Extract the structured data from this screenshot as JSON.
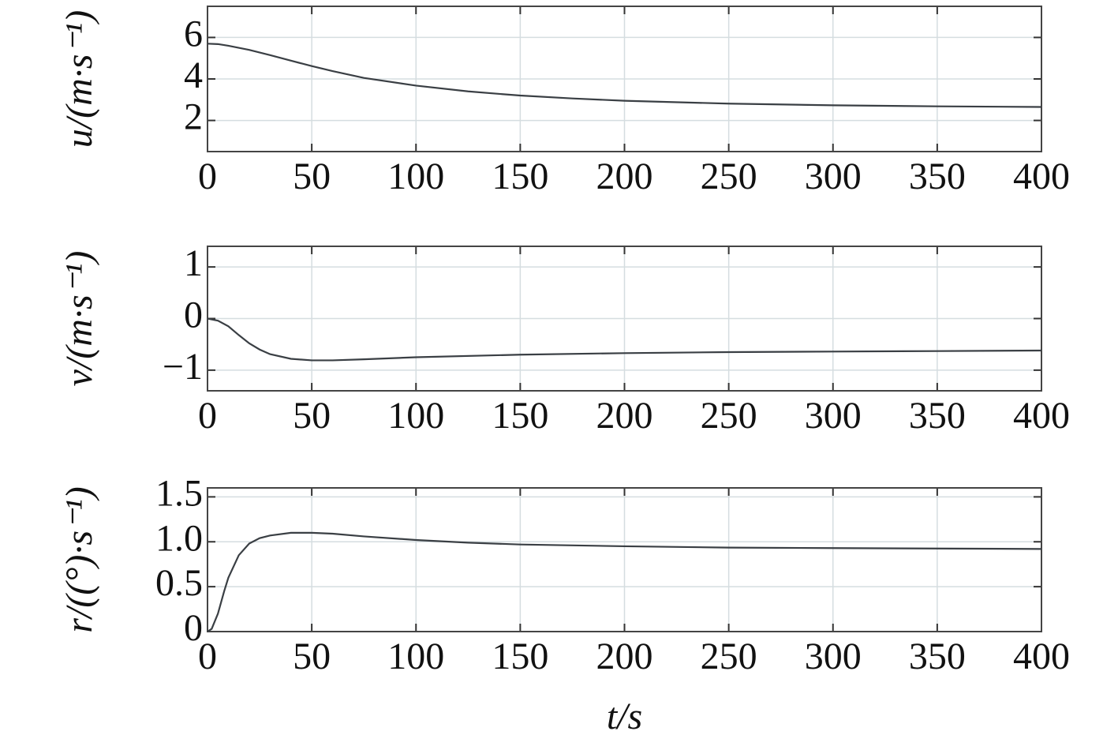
{
  "chart_data": [
    {
      "type": "line",
      "ylabel": "u/(m·s⁻¹)",
      "x": [
        0,
        5,
        10,
        20,
        30,
        40,
        50,
        60,
        75,
        100,
        125,
        150,
        175,
        200,
        250,
        300,
        350,
        400
      ],
      "series": [
        {
          "color": "#3a3f44",
          "values": [
            5.7,
            5.68,
            5.6,
            5.4,
            5.15,
            4.88,
            4.62,
            4.38,
            4.05,
            3.68,
            3.4,
            3.2,
            3.06,
            2.95,
            2.81,
            2.73,
            2.68,
            2.65
          ]
        }
      ],
      "xlim": [
        0,
        400
      ],
      "xticks": [
        0,
        50,
        100,
        150,
        200,
        250,
        300,
        350,
        400
      ],
      "ylim": [
        0.5,
        7.5
      ],
      "yticks": [
        2,
        4,
        6
      ],
      "grid": true
    },
    {
      "type": "line",
      "ylabel": "v/(m·s⁻¹)",
      "x": [
        0,
        5,
        10,
        15,
        20,
        25,
        30,
        40,
        50,
        60,
        75,
        100,
        150,
        200,
        250,
        300,
        350,
        400
      ],
      "series": [
        {
          "color": "#3a3f44",
          "values": [
            0,
            -0.04,
            -0.15,
            -0.32,
            -0.48,
            -0.6,
            -0.69,
            -0.78,
            -0.81,
            -0.81,
            -0.79,
            -0.75,
            -0.7,
            -0.67,
            -0.65,
            -0.64,
            -0.63,
            -0.62
          ]
        }
      ],
      "xlim": [
        0,
        400
      ],
      "xticks": [
        0,
        50,
        100,
        150,
        200,
        250,
        300,
        350,
        400
      ],
      "ylim": [
        -1.4,
        1.4
      ],
      "yticks": [
        {
          "value": -1,
          "label": "−1"
        },
        0,
        1
      ],
      "grid": true
    },
    {
      "type": "line",
      "ylabel": "r/((°)·s⁻¹)",
      "xlabel": "t/s",
      "x": [
        0,
        2,
        5,
        8,
        10,
        15,
        20,
        25,
        30,
        40,
        50,
        60,
        75,
        100,
        125,
        150,
        200,
        250,
        300,
        400
      ],
      "series": [
        {
          "color": "#3a3f44",
          "values": [
            0,
            0.03,
            0.2,
            0.45,
            0.6,
            0.85,
            0.98,
            1.04,
            1.07,
            1.1,
            1.1,
            1.09,
            1.06,
            1.02,
            0.99,
            0.97,
            0.95,
            0.935,
            0.93,
            0.92
          ]
        }
      ],
      "xlim": [
        0,
        400
      ],
      "xticks": [
        0,
        50,
        100,
        150,
        200,
        250,
        300,
        350,
        400
      ],
      "ylim": [
        0,
        1.6
      ],
      "yticks": [
        0,
        {
          "value": 0.5,
          "label": "0.5"
        },
        {
          "value": 1,
          "label": "1.0"
        },
        {
          "value": 1.5,
          "label": "1.5"
        }
      ],
      "grid": true
    }
  ]
}
